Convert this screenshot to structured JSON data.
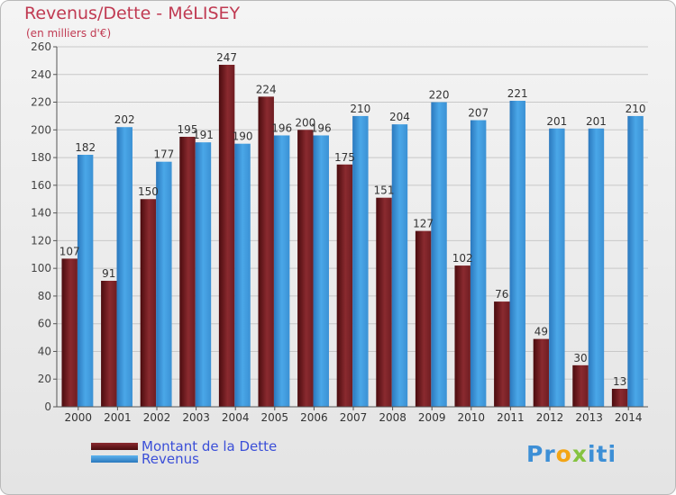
{
  "title": "Revenus/Dette - MéLISEY",
  "subtitle": "(en milliers d'€)",
  "logo": {
    "letters": [
      "P",
      "r",
      "o",
      "x",
      "i",
      "t",
      "i"
    ],
    "colors": [
      "#3d8fd6",
      "#3d8fd6",
      "#f3a515",
      "#84c33f",
      "#3d8fd6",
      "#3d8fd6",
      "#3d8fd6"
    ]
  },
  "chart_data": {
    "type": "bar",
    "categories": [
      "2000",
      "2001",
      "2002",
      "2003",
      "2004",
      "2005",
      "2006",
      "2007",
      "2008",
      "2009",
      "2010",
      "2011",
      "2012",
      "2013",
      "2014"
    ],
    "series": [
      {
        "name": "Montant de la Dette",
        "color": "#8a2a2f",
        "values": [
          107,
          91,
          150,
          195,
          247,
          224,
          200,
          175,
          151,
          127,
          102,
          76,
          49,
          30,
          13
        ]
      },
      {
        "name": "Revenus",
        "color": "#4aa7e8",
        "values": [
          182,
          202,
          177,
          191,
          190,
          196,
          196,
          210,
          204,
          220,
          207,
          221,
          201,
          201,
          210
        ]
      }
    ],
    "ylim": [
      0,
      260
    ],
    "ytick_step": 20,
    "yticks": [
      "0",
      "20",
      "40",
      "60",
      "80",
      "100",
      "120",
      "140",
      "160",
      "180",
      "200",
      "220",
      "240",
      "260"
    ],
    "grid": true,
    "legend_position": "bottom-left"
  }
}
